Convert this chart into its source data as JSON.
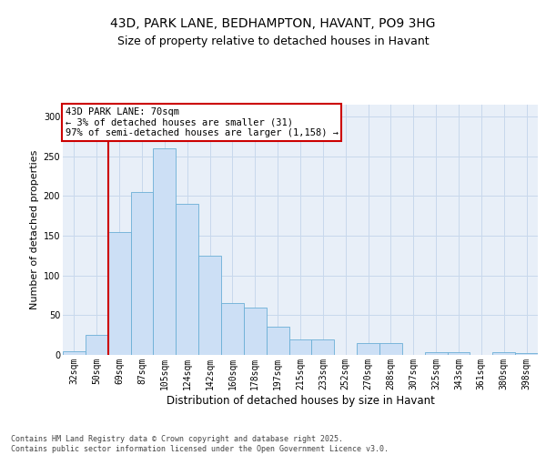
{
  "title_line1": "43D, PARK LANE, BEDHAMPTON, HAVANT, PO9 3HG",
  "title_line2": "Size of property relative to detached houses in Havant",
  "xlabel": "Distribution of detached houses by size in Havant",
  "ylabel": "Number of detached properties",
  "categories": [
    "32sqm",
    "50sqm",
    "69sqm",
    "87sqm",
    "105sqm",
    "124sqm",
    "142sqm",
    "160sqm",
    "178sqm",
    "197sqm",
    "215sqm",
    "233sqm",
    "252sqm",
    "270sqm",
    "288sqm",
    "307sqm",
    "325sqm",
    "343sqm",
    "361sqm",
    "380sqm",
    "398sqm"
  ],
  "values": [
    5,
    25,
    155,
    205,
    260,
    190,
    125,
    65,
    60,
    35,
    20,
    20,
    0,
    15,
    15,
    0,
    3,
    3,
    0,
    3,
    2
  ],
  "bar_color": "#ccdff5",
  "bar_edge_color": "#6aafd6",
  "vline_index": 2,
  "vline_color": "#cc0000",
  "annotation_text": "43D PARK LANE: 70sqm\n← 3% of detached houses are smaller (31)\n97% of semi-detached houses are larger (1,158) →",
  "annotation_box_facecolor": "#ffffff",
  "annotation_box_edgecolor": "#cc0000",
  "ylim": [
    0,
    315
  ],
  "yticks": [
    0,
    50,
    100,
    150,
    200,
    250,
    300
  ],
  "grid_color": "#c8d8ec",
  "plot_bg_color": "#e8eff8",
  "footer_text": "Contains HM Land Registry data © Crown copyright and database right 2025.\nContains public sector information licensed under the Open Government Licence v3.0.",
  "title1_fontsize": 10,
  "title2_fontsize": 9,
  "xlabel_fontsize": 8.5,
  "ylabel_fontsize": 8,
  "tick_fontsize": 7,
  "annot_fontsize": 7.5,
  "footer_fontsize": 6
}
